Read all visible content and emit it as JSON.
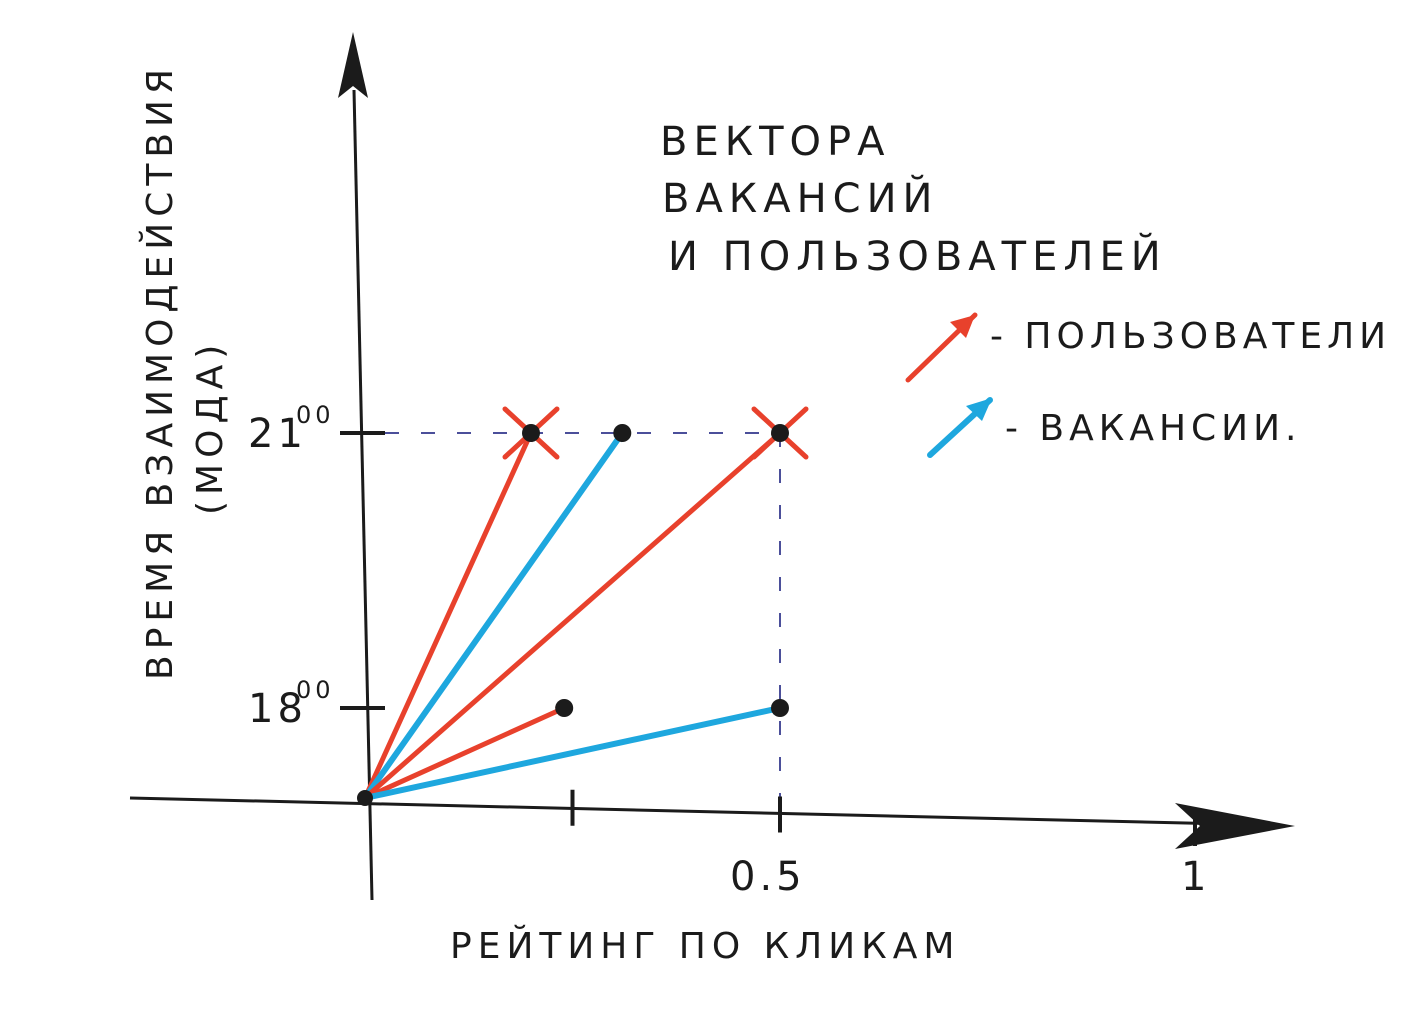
{
  "title": [
    "ВЕКТОРА",
    "ВАКАНСИЙ",
    "И   ПОЛЬЗОВАТЕЛЕЙ"
  ],
  "legend": [
    {
      "label": "- ПОЛЬЗОВАТЕЛИ",
      "color": "#e8412c",
      "kind": "users"
    },
    {
      "label": "- ВАКАНСИИ.",
      "color": "#1ea7de",
      "kind": "vacancies"
    }
  ],
  "axes": {
    "xlabel": "РЕЙТИНГ ПО КЛИКАМ",
    "ylabel": "ВРЕМЯ ВЗАИМОДЕЙСТВИЯ",
    "ylabel_sub": "(МОДА)",
    "x_ticks": [
      {
        "value": 0.25,
        "label": ""
      },
      {
        "value": 0.5,
        "label": "0.5"
      },
      {
        "value": 1,
        "label": "1"
      }
    ],
    "y_ticks": [
      {
        "value": 18,
        "label": "18",
        "sup": "00"
      },
      {
        "value": 21,
        "label": "21",
        "sup": "00"
      }
    ]
  },
  "vectors": [
    {
      "kind": "users",
      "x": 0.2,
      "y": 21,
      "end": "cross"
    },
    {
      "kind": "vacancies",
      "x": 0.31,
      "y": 21,
      "end": "dot"
    },
    {
      "kind": "users",
      "x": 0.5,
      "y": 21,
      "end": "cross"
    },
    {
      "kind": "users",
      "x": 0.24,
      "y": 18,
      "end": "dot"
    },
    {
      "kind": "vacancies",
      "x": 0.5,
      "y": 18,
      "end": "dot"
    }
  ],
  "colors": {
    "users": "#e8412c",
    "vacancies": "#1ea7de",
    "ink": "#1b1b1b",
    "guide": "#4b4f9a"
  }
}
